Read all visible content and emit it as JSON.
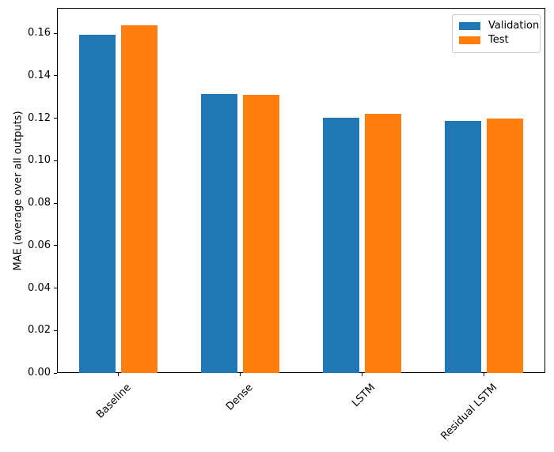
{
  "chart_data": {
    "type": "bar",
    "title": "",
    "xlabel": "",
    "ylabel": "MAE (average over all outputs)",
    "categories": [
      "Baseline",
      "Dense",
      "LSTM",
      "Residual LSTM"
    ],
    "series": [
      {
        "name": "Validation",
        "color": "#1f77b4",
        "values": [
          0.1592,
          0.1313,
          0.1203,
          0.1187
        ]
      },
      {
        "name": "Test",
        "color": "#ff7f0e",
        "values": [
          0.1638,
          0.1312,
          0.122,
          0.1197
        ]
      }
    ],
    "ylim": [
      0,
      0.172
    ],
    "yticks": [
      0.0,
      0.02,
      0.04,
      0.06,
      0.08,
      0.1,
      0.12,
      0.14,
      0.16
    ],
    "ytick_labels": [
      "0.00",
      "0.02",
      "0.04",
      "0.06",
      "0.08",
      "0.10",
      "0.12",
      "0.14",
      "0.16"
    ],
    "xtick_rotation_deg": 45,
    "grid": false,
    "legend_position": "upper right",
    "bar_color_blue": "#1f77b4",
    "bar_color_orange": "#ff7f0e"
  }
}
